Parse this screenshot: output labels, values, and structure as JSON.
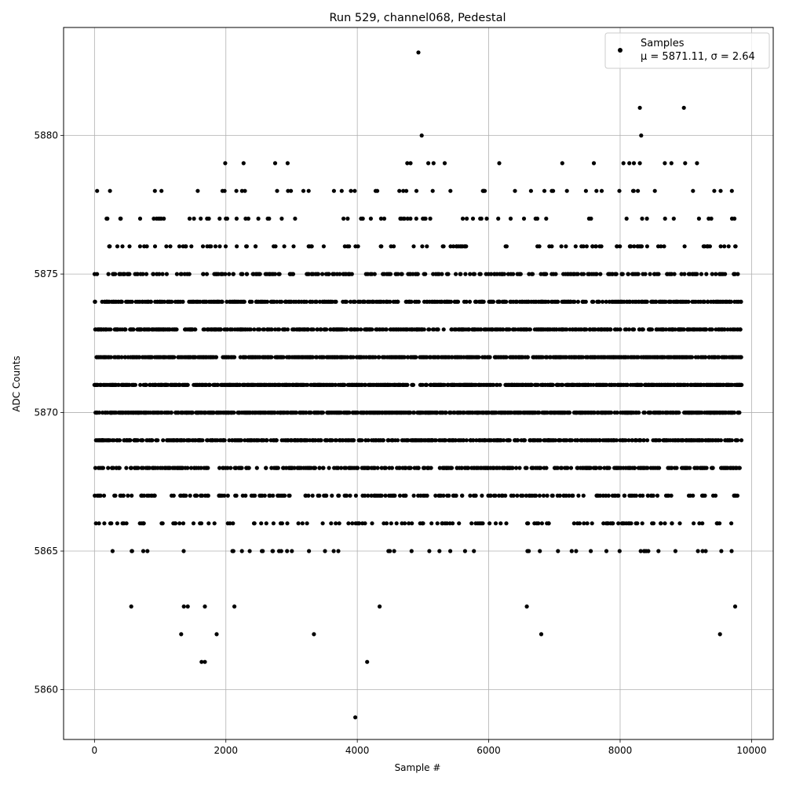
{
  "chart_data": {
    "type": "scatter",
    "title": "Run 529, channel068, Pedestal",
    "xlabel": "Sample #",
    "ylabel": "ADC Counts",
    "xlim": [
      -470,
      10330
    ],
    "ylim": [
      5858.2,
      5883.9
    ],
    "xticks": [
      0,
      2000,
      4000,
      6000,
      8000,
      10000
    ],
    "xtick_labels": [
      "0",
      "2000",
      "4000",
      "6000",
      "8000",
      "10000"
    ],
    "yticks": [
      5860,
      5865,
      5870,
      5875,
      5880
    ],
    "ytick_labels": [
      "5860",
      "5865",
      "5870",
      "5875",
      "5880"
    ],
    "grid": true,
    "legend": {
      "location": "upper right",
      "entries": [
        {
          "name": "Samples",
          "stats": "μ = 5871.11, σ = 2.64"
        }
      ]
    },
    "marker_color": "#000000",
    "n_samples": 10000,
    "mean": 5871.11,
    "sigma": 2.64,
    "series": [
      {
        "name": "Samples",
        "x_range": [
          0,
          9850
        ],
        "dense_levels": [
          5866,
          5867,
          5868,
          5869,
          5870,
          5871,
          5872,
          5873,
          5874,
          5875,
          5876,
          5877
        ],
        "outliers": [
          {
            "x": 4930,
            "y": 5883
          },
          {
            "x": 8300,
            "y": 5881
          },
          {
            "x": 8970,
            "y": 5881
          },
          {
            "x": 4980,
            "y": 5880
          },
          {
            "x": 8320,
            "y": 5880
          },
          {
            "x": 1990,
            "y": 5879
          },
          {
            "x": 2270,
            "y": 5879
          },
          {
            "x": 2750,
            "y": 5879
          },
          {
            "x": 2940,
            "y": 5879
          },
          {
            "x": 4760,
            "y": 5879
          },
          {
            "x": 4810,
            "y": 5879
          },
          {
            "x": 5080,
            "y": 5879
          },
          {
            "x": 5160,
            "y": 5879
          },
          {
            "x": 5330,
            "y": 5879
          },
          {
            "x": 6160,
            "y": 5879
          },
          {
            "x": 7120,
            "y": 5879
          },
          {
            "x": 7600,
            "y": 5879
          },
          {
            "x": 8050,
            "y": 5879
          },
          {
            "x": 8140,
            "y": 5879
          },
          {
            "x": 8210,
            "y": 5879
          },
          {
            "x": 8300,
            "y": 5879
          },
          {
            "x": 8680,
            "y": 5879
          },
          {
            "x": 8780,
            "y": 5879
          },
          {
            "x": 8990,
            "y": 5879
          },
          {
            "x": 9170,
            "y": 5879
          },
          {
            "x": 40,
            "y": 5878
          },
          {
            "x": 920,
            "y": 5878
          },
          {
            "x": 1020,
            "y": 5878
          },
          {
            "x": 1980,
            "y": 5878
          },
          {
            "x": 2160,
            "y": 5878
          },
          {
            "x": 2290,
            "y": 5878
          },
          {
            "x": 2780,
            "y": 5878
          },
          {
            "x": 2990,
            "y": 5878
          },
          {
            "x": 3180,
            "y": 5878
          },
          {
            "x": 3260,
            "y": 5878
          },
          {
            "x": 4640,
            "y": 5878
          },
          {
            "x": 4700,
            "y": 5878
          },
          {
            "x": 4900,
            "y": 5878
          },
          {
            "x": 5940,
            "y": 5878
          },
          {
            "x": 6400,
            "y": 5878
          },
          {
            "x": 6960,
            "y": 5878
          },
          {
            "x": 7190,
            "y": 5878
          },
          {
            "x": 7480,
            "y": 5878
          },
          {
            "x": 7640,
            "y": 5878
          },
          {
            "x": 7720,
            "y": 5878
          },
          {
            "x": 9530,
            "y": 5878
          },
          {
            "x": 9700,
            "y": 5878
          },
          {
            "x": 560,
            "y": 5863
          },
          {
            "x": 1360,
            "y": 5863
          },
          {
            "x": 1420,
            "y": 5863
          },
          {
            "x": 1680,
            "y": 5863
          },
          {
            "x": 2130,
            "y": 5863
          },
          {
            "x": 4340,
            "y": 5863
          },
          {
            "x": 6580,
            "y": 5863
          },
          {
            "x": 9750,
            "y": 5863
          },
          {
            "x": 1320,
            "y": 5862
          },
          {
            "x": 1860,
            "y": 5862
          },
          {
            "x": 3340,
            "y": 5862
          },
          {
            "x": 6800,
            "y": 5862
          },
          {
            "x": 9520,
            "y": 5862
          },
          {
            "x": 1630,
            "y": 5861
          },
          {
            "x": 1680,
            "y": 5861
          },
          {
            "x": 4150,
            "y": 5861
          },
          {
            "x": 3970,
            "y": 5859
          }
        ]
      }
    ]
  }
}
